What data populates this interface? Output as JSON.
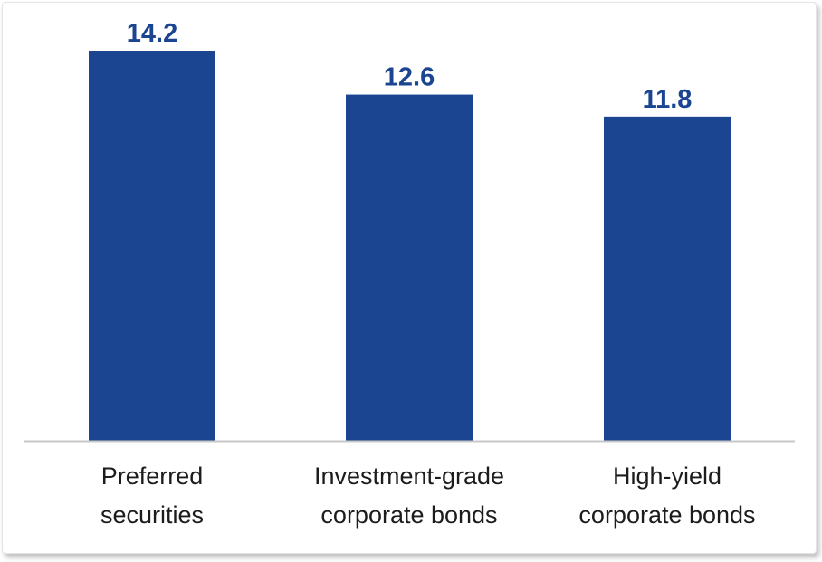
{
  "chart_data": {
    "type": "bar",
    "categories": [
      [
        "Preferred",
        "securities"
      ],
      [
        "Investment-grade",
        "corporate bonds"
      ],
      [
        "High-yield",
        "corporate bonds"
      ]
    ],
    "values": [
      14.2,
      12.6,
      11.8
    ],
    "value_labels": [
      "14.2",
      "12.6",
      "11.8"
    ],
    "title": "",
    "xlabel": "",
    "ylabel": "",
    "ylim": [
      0,
      14.2
    ],
    "grid": false,
    "legend": "none",
    "colors": {
      "bar": "#1b4590",
      "value_label": "#1b4590",
      "category_label": "#1c1c1c",
      "baseline": "#c8c8c8"
    }
  }
}
